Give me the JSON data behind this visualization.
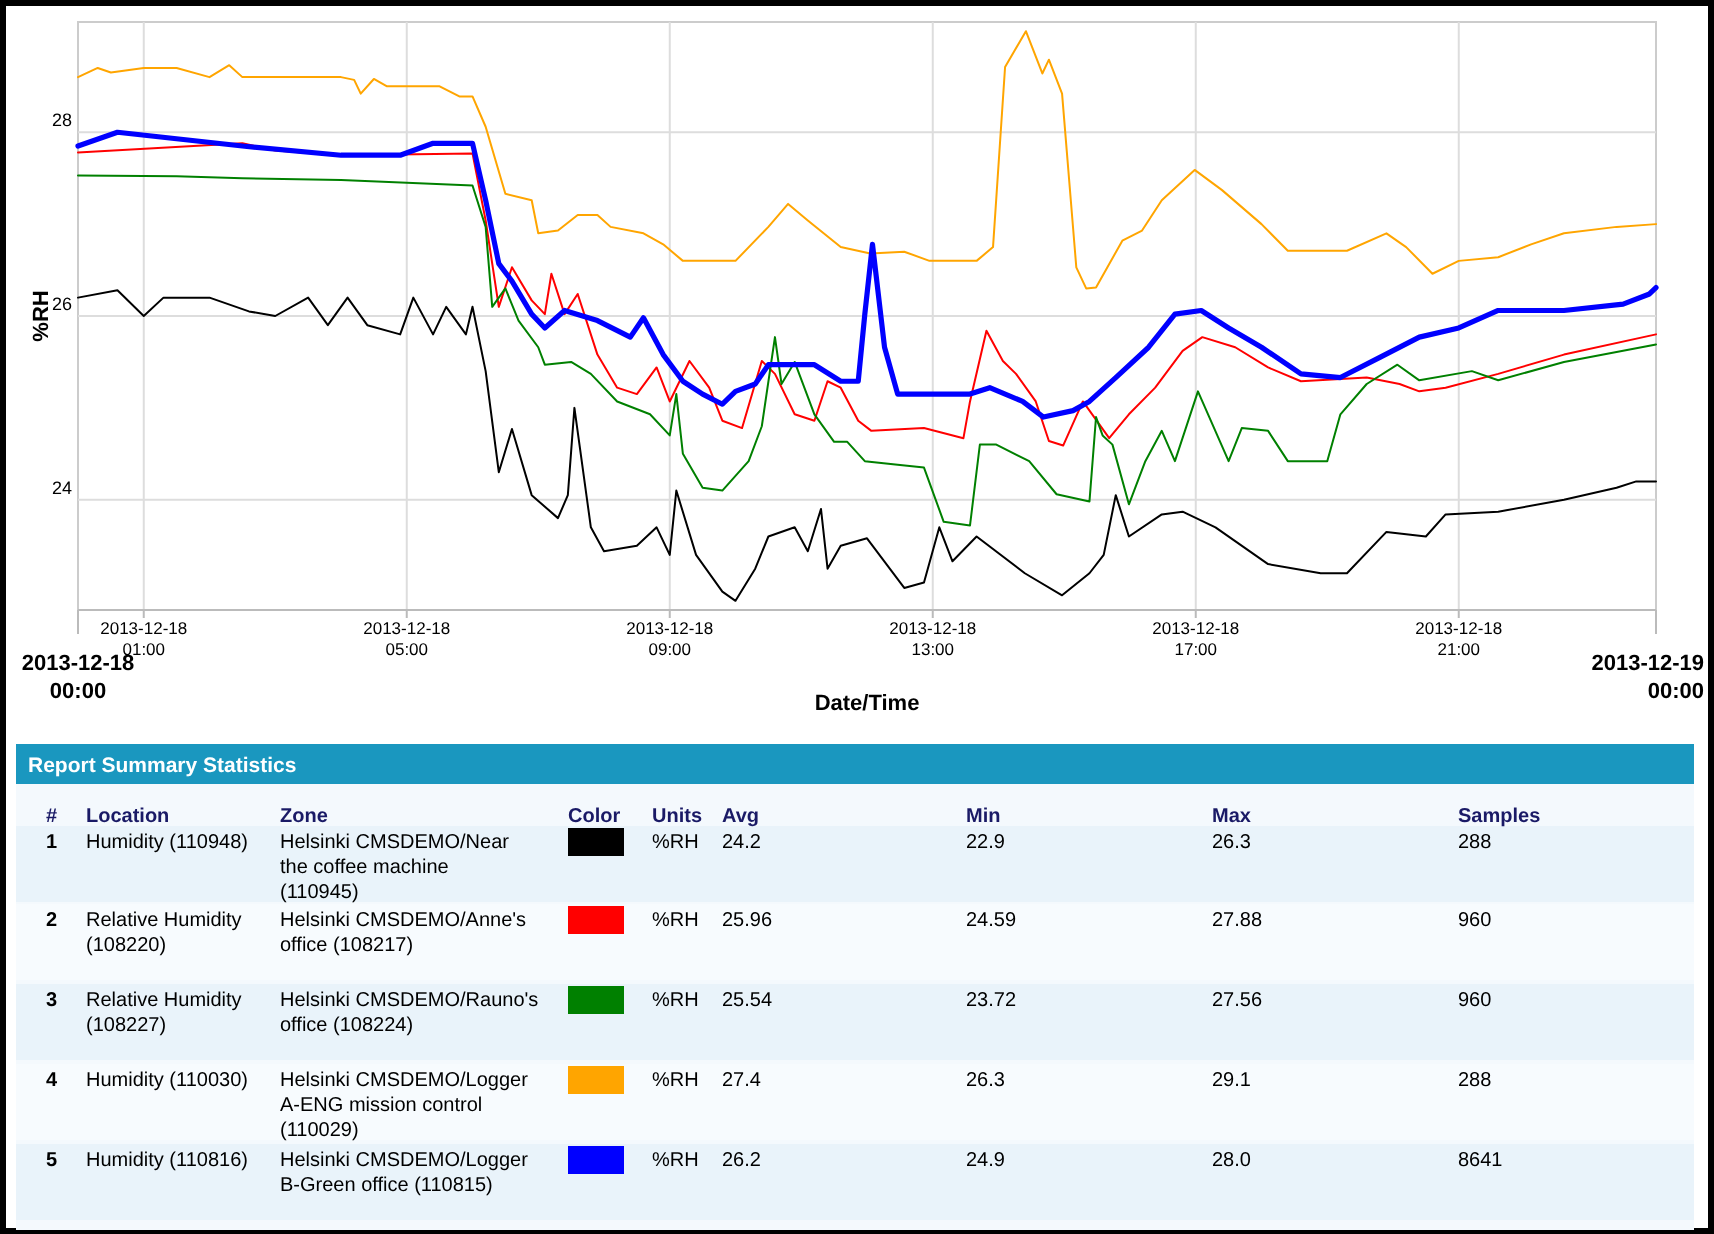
{
  "chart_data": {
    "type": "line",
    "xlabel": "Date/Time",
    "ylabel": "%RH",
    "xlim": [
      "2013-12-18T00:00",
      "2013-12-19T00:00"
    ],
    "ylim": [
      22.8,
      29.2
    ],
    "yticks": [
      24,
      26,
      28
    ],
    "xticks": [
      {
        "value": "2013-12-18T01:00",
        "label": "2013-12-18\n01:00"
      },
      {
        "value": "2013-12-18T05:00",
        "label": "2013-12-18\n05:00"
      },
      {
        "value": "2013-12-18T09:00",
        "label": "2013-12-18\n09:00"
      },
      {
        "value": "2013-12-18T13:00",
        "label": "2013-12-18\n13:00"
      },
      {
        "value": "2013-12-18T17:00",
        "label": "2013-12-18\n17:00"
      },
      {
        "value": "2013-12-18T21:00",
        "label": "2013-12-18\n21:00"
      }
    ],
    "grid": true,
    "series": [
      {
        "color": "#000000",
        "x": [
          "2013-12-18T00:00",
          "2013-12-18T00:36",
          "2013-12-18T01:00",
          "2013-12-18T01:18",
          "2013-12-18T02:00",
          "2013-12-18T02:36",
          "2013-12-18T03:00",
          "2013-12-18T03:30",
          "2013-12-18T03:48",
          "2013-12-18T04:06",
          "2013-12-18T04:24",
          "2013-12-18T04:54",
          "2013-12-18T05:06",
          "2013-12-18T05:24",
          "2013-12-18T05:36",
          "2013-12-18T05:54",
          "2013-12-18T06:00",
          "2013-12-18T06:12",
          "2013-12-18T06:24",
          "2013-12-18T06:36",
          "2013-12-18T06:54",
          "2013-12-18T07:18",
          "2013-12-18T07:27",
          "2013-12-18T07:33",
          "2013-12-18T07:48",
          "2013-12-18T08:00",
          "2013-12-18T08:30",
          "2013-12-18T08:48",
          "2013-12-18T09:00",
          "2013-12-18T09:06",
          "2013-12-18T09:24",
          "2013-12-18T09:48",
          "2013-12-18T10:00",
          "2013-12-18T10:18",
          "2013-12-18T10:30",
          "2013-12-18T10:54",
          "2013-12-18T11:06",
          "2013-12-18T11:18",
          "2013-12-18T11:24",
          "2013-12-18T11:36",
          "2013-12-18T12:00",
          "2013-12-18T12:34",
          "2013-12-18T12:52",
          "2013-12-18T13:06",
          "2013-12-18T13:18",
          "2013-12-18T13:40",
          "2013-12-18T14:24",
          "2013-12-18T14:58",
          "2013-12-18T15:23",
          "2013-12-18T15:36",
          "2013-12-18T15:47",
          "2013-12-18T15:59",
          "2013-12-18T16:29",
          "2013-12-18T16:48",
          "2013-12-18T17:18",
          "2013-12-18T18:06",
          "2013-12-18T18:54",
          "2013-12-18T19:18",
          "2013-12-18T19:54",
          "2013-12-18T20:30",
          "2013-12-18T20:48",
          "2013-12-18T21:36",
          "2013-12-18T22:36",
          "2013-12-18T23:24",
          "2013-12-18T23:42",
          "2013-12-19T00:00"
        ],
        "values": [
          26.2,
          26.28,
          26,
          26.2,
          26.2,
          26.05,
          26,
          26.2,
          25.9,
          26.2,
          25.9,
          25.8,
          26.2,
          25.8,
          26.1,
          25.8,
          26.1,
          25.4,
          24.3,
          24.77,
          24.05,
          23.8,
          24.05,
          25,
          23.7,
          23.44,
          23.5,
          23.7,
          23.4,
          24.1,
          23.4,
          23,
          22.9,
          23.25,
          23.6,
          23.7,
          23.44,
          23.9,
          23.25,
          23.5,
          23.58,
          23.04,
          23.1,
          23.7,
          23.33,
          23.6,
          23.2,
          22.96,
          23.2,
          23.4,
          24.05,
          23.6,
          23.84,
          23.87,
          23.7,
          23.3,
          23.2,
          23.2,
          23.65,
          23.6,
          23.84,
          23.87,
          24,
          24.13,
          24.2,
          24.2
        ]
      },
      {
        "color": "#ff0000",
        "x": [
          "2013-12-18T00:00",
          "2013-12-18T02:30",
          "2013-12-18T03:00",
          "2013-12-18T04:00",
          "2013-12-18T06:00",
          "2013-12-18T06:12",
          "2013-12-18T06:24",
          "2013-12-18T06:36",
          "2013-12-18T06:54",
          "2013-12-18T07:06",
          "2013-12-18T07:12",
          "2013-12-18T07:24",
          "2013-12-18T07:36",
          "2013-12-18T07:54",
          "2013-12-18T08:12",
          "2013-12-18T08:30",
          "2013-12-18T08:48",
          "2013-12-18T09:00",
          "2013-12-18T09:18",
          "2013-12-18T09:36",
          "2013-12-18T09:48",
          "2013-12-18T10:06",
          "2013-12-18T10:24",
          "2013-12-18T10:36",
          "2013-12-18T10:54",
          "2013-12-18T11:12",
          "2013-12-18T11:24",
          "2013-12-18T11:36",
          "2013-12-18T11:52",
          "2013-12-18T12:04",
          "2013-12-18T12:52",
          "2013-12-18T13:28",
          "2013-12-18T13:34",
          "2013-12-18T13:49",
          "2013-12-18T14:04",
          "2013-12-18T14:16",
          "2013-12-18T14:34",
          "2013-12-18T14:46",
          "2013-12-18T14:59",
          "2013-12-18T15:17",
          "2013-12-18T15:41",
          "2013-12-18T15:59",
          "2013-12-18T16:23",
          "2013-12-18T16:48",
          "2013-12-18T17:06",
          "2013-12-18T17:36",
          "2013-12-18T18:06",
          "2013-12-18T18:36",
          "2013-12-18T19:36",
          "2013-12-18T20:06",
          "2013-12-18T20:24",
          "2013-12-18T20:48",
          "2013-12-18T21:36",
          "2013-12-18T22:36",
          "2013-12-19T00:00"
        ],
        "values": [
          27.78,
          27.88,
          27.8,
          27.75,
          27.77,
          27.04,
          26.1,
          26.53,
          26.17,
          26.02,
          26.46,
          26.02,
          26.24,
          25.58,
          25.22,
          25.15,
          25.44,
          25.07,
          25.51,
          25.22,
          24.86,
          24.78,
          25.51,
          25.37,
          24.93,
          24.86,
          25.29,
          25.22,
          24.86,
          24.75,
          24.78,
          24.67,
          25.07,
          25.84,
          25.51,
          25.37,
          25.07,
          24.64,
          24.59,
          25.07,
          24.67,
          24.93,
          25.22,
          25.62,
          25.77,
          25.66,
          25.44,
          25.29,
          25.33,
          25.26,
          25.18,
          25.22,
          25.37,
          25.58,
          25.8
        ]
      },
      {
        "color": "#008000",
        "x": [
          "2013-12-18T00:00",
          "2013-12-18T01:30",
          "2013-12-18T02:30",
          "2013-12-18T04:00",
          "2013-12-18T06:00",
          "2013-12-18T06:12",
          "2013-12-18T06:18",
          "2013-12-18T06:30",
          "2013-12-18T06:42",
          "2013-12-18T07:00",
          "2013-12-18T07:06",
          "2013-12-18T07:30",
          "2013-12-18T07:48",
          "2013-12-18T08:12",
          "2013-12-18T08:42",
          "2013-12-18T09:00",
          "2013-12-18T09:06",
          "2013-12-18T09:12",
          "2013-12-18T09:30",
          "2013-12-18T09:48",
          "2013-12-18T10:12",
          "2013-12-18T10:24",
          "2013-12-18T10:36",
          "2013-12-18T10:42",
          "2013-12-18T10:54",
          "2013-12-18T11:12",
          "2013-12-18T11:30",
          "2013-12-18T11:42",
          "2013-12-18T11:58",
          "2013-12-18T12:28",
          "2013-12-18T12:52",
          "2013-12-18T13:10",
          "2013-12-18T13:34",
          "2013-12-18T13:43",
          "2013-12-18T13:58",
          "2013-12-18T14:28",
          "2013-12-18T14:53",
          "2013-12-18T15:23",
          "2013-12-18T15:29",
          "2013-12-18T15:35",
          "2013-12-18T15:44",
          "2013-12-18T15:59",
          "2013-12-18T16:14",
          "2013-12-18T16:29",
          "2013-12-18T16:41",
          "2013-12-18T17:02",
          "2013-12-18T17:30",
          "2013-12-18T17:42",
          "2013-12-18T18:06",
          "2013-12-18T18:24",
          "2013-12-18T19:00",
          "2013-12-18T19:12",
          "2013-12-18T19:36",
          "2013-12-18T20:04",
          "2013-12-18T20:24",
          "2013-12-18T21:12",
          "2013-12-18T21:36",
          "2013-12-18T22:36",
          "2013-12-19T00:00"
        ],
        "values": [
          27.53,
          27.52,
          27.5,
          27.48,
          27.42,
          26.97,
          26.1,
          26.3,
          25.95,
          25.66,
          25.47,
          25.5,
          25.37,
          25.07,
          24.93,
          24.7,
          25.15,
          24.5,
          24.13,
          24.1,
          24.42,
          24.8,
          25.77,
          25.26,
          25.5,
          24.93,
          24.63,
          24.63,
          24.42,
          24.38,
          24.35,
          23.76,
          23.72,
          24.6,
          24.6,
          24.42,
          24.06,
          23.98,
          24.9,
          24.7,
          24.6,
          23.95,
          24.42,
          24.75,
          24.42,
          25.18,
          24.42,
          24.78,
          24.75,
          24.42,
          24.42,
          24.93,
          25.26,
          25.47,
          25.3,
          25.4,
          25.3,
          25.5,
          25.69
        ]
      },
      {
        "color": "#ffa500",
        "x": [
          "2013-12-18T00:00",
          "2013-12-18T00:18",
          "2013-12-18T00:30",
          "2013-12-18T01:00",
          "2013-12-18T01:30",
          "2013-12-18T02:00",
          "2013-12-18T02:18",
          "2013-12-18T02:30",
          "2013-12-18T04:00",
          "2013-12-18T04:12",
          "2013-12-18T04:18",
          "2013-12-18T04:30",
          "2013-12-18T04:42",
          "2013-12-18T05:30",
          "2013-12-18T05:48",
          "2013-12-18T06:00",
          "2013-12-18T06:12",
          "2013-12-18T06:30",
          "2013-12-18T06:54",
          "2013-12-18T07:00",
          "2013-12-18T07:18",
          "2013-12-18T07:36",
          "2013-12-18T07:54",
          "2013-12-18T08:06",
          "2013-12-18T08:36",
          "2013-12-18T08:54",
          "2013-12-18T09:12",
          "2013-12-18T10:00",
          "2013-12-18T10:30",
          "2013-12-18T10:48",
          "2013-12-18T11:06",
          "2013-12-18T11:36",
          "2013-12-18T12:03",
          "2013-12-18T12:34",
          "2013-12-18T12:57",
          "2013-12-18T13:40",
          "2013-12-18T13:55",
          "2013-12-18T14:06",
          "2013-12-18T14:25",
          "2013-12-18T14:40",
          "2013-12-18T14:46",
          "2013-12-18T14:58",
          "2013-12-18T15:11",
          "2013-12-18T15:20",
          "2013-12-18T15:29",
          "2013-12-18T15:53",
          "2013-12-18T16:11",
          "2013-12-18T16:29",
          "2013-12-18T16:59",
          "2013-12-18T17:24",
          "2013-12-18T18:00",
          "2013-12-18T18:24",
          "2013-12-18T19:18",
          "2013-12-18T19:54",
          "2013-12-18T20:12",
          "2013-12-18T20:36",
          "2013-12-18T21:00",
          "2013-12-18T21:36",
          "2013-12-18T22:06",
          "2013-12-18T22:36",
          "2013-12-18T23:24",
          "2013-12-19T00:00"
        ],
        "values": [
          28.6,
          28.7,
          28.65,
          28.7,
          28.7,
          28.6,
          28.73,
          28.6,
          28.6,
          28.57,
          28.42,
          28.58,
          28.5,
          28.5,
          28.39,
          28.39,
          28.06,
          27.33,
          27.26,
          26.9,
          26.93,
          27.1,
          27.1,
          26.97,
          26.9,
          26.78,
          26.6,
          26.6,
          26.97,
          27.22,
          27.04,
          26.75,
          26.68,
          26.7,
          26.6,
          26.6,
          26.75,
          28.71,
          29.1,
          28.64,
          28.79,
          28.42,
          26.53,
          26.3,
          26.31,
          26.82,
          26.93,
          27.26,
          27.59,
          27.37,
          27,
          26.71,
          26.71,
          26.9,
          26.75,
          26.46,
          26.6,
          26.64,
          26.78,
          26.9,
          26.97,
          27
        ]
      },
      {
        "color": "#0000ff",
        "x": [
          "2013-12-18T00:00",
          "2013-12-18T00:36",
          "2013-12-18T02:30",
          "2013-12-18T04:00",
          "2013-12-18T04:54",
          "2013-12-18T05:24",
          "2013-12-18T06:00",
          "2013-12-18T06:12",
          "2013-12-18T06:24",
          "2013-12-18T06:36",
          "2013-12-18T06:54",
          "2013-12-18T07:06",
          "2013-12-18T07:24",
          "2013-12-18T07:54",
          "2013-12-18T08:24",
          "2013-12-18T08:36",
          "2013-12-18T08:54",
          "2013-12-18T09:12",
          "2013-12-18T09:30",
          "2013-12-18T09:48",
          "2013-12-18T10:00",
          "2013-12-18T10:18",
          "2013-12-18T10:30",
          "2013-12-18T11:12",
          "2013-12-18T11:36",
          "2013-12-18T11:52",
          "2013-12-18T11:58",
          "2013-12-18T12:05",
          "2013-12-18T12:16",
          "2013-12-18T12:28",
          "2013-12-18T13:34",
          "2013-12-18T13:52",
          "2013-12-18T14:22",
          "2013-12-18T14:41",
          "2013-12-18T15:08",
          "2013-12-18T15:23",
          "2013-12-18T15:47",
          "2013-12-18T16:17",
          "2013-12-18T16:41",
          "2013-12-18T17:05",
          "2013-12-18T17:30",
          "2013-12-18T18:00",
          "2013-12-18T18:36",
          "2013-12-18T19:12",
          "2013-12-18T19:48",
          "2013-12-18T20:24",
          "2013-12-18T21:00",
          "2013-12-18T21:36",
          "2013-12-18T22:36",
          "2013-12-18T23:30",
          "2013-12-18T23:54",
          "2013-12-19T00:00"
        ],
        "values": [
          27.85,
          28,
          27.85,
          27.75,
          27.75,
          27.88,
          27.88,
          27.26,
          26.57,
          26.38,
          26.02,
          25.87,
          26.06,
          25.95,
          25.77,
          25.98,
          25.58,
          25.29,
          25.15,
          25.04,
          25.18,
          25.26,
          25.47,
          25.47,
          25.29,
          25.29,
          26.02,
          26.78,
          25.66,
          25.15,
          25.15,
          25.22,
          25.07,
          24.9,
          24.97,
          25.07,
          25.33,
          25.66,
          26.02,
          26.06,
          25.87,
          25.66,
          25.37,
          25.33,
          25.55,
          25.77,
          25.87,
          26.06,
          26.06,
          26.13,
          26.24,
          26.31
        ]
      }
    ],
    "annotations": [
      "2013-12-18\n00:00",
      "2013-12-19\n00:00",
      "Report Summary Statistics",
      "#",
      "Location",
      "Zone",
      "Color",
      "Units",
      "Avg",
      "Min",
      "Max",
      "Samples",
      "1",
      "Humidity (110948)",
      "Helsinki CMSDEMO/Near the coffee machine (110945)",
      "%RH",
      "24.2",
      "22.9",
      "26.3",
      "288",
      "2",
      "Relative Humidity (108220)",
      "Helsinki CMSDEMO/Anne's office (108217)",
      "%RH",
      "25.96",
      "24.59",
      "27.88",
      "960",
      "3",
      "Relative Humidity (108227)",
      "Helsinki CMSDEMO/Rauno's office (108224)",
      "%RH",
      "25.54",
      "23.72",
      "27.56",
      "960",
      "4",
      "Humidity (110030)",
      "Helsinki CMSDEMO/Logger A-ENG mission control (110029)",
      "%RH",
      "27.4",
      "26.3",
      "29.1",
      "288",
      "5",
      "Humidity (110816)",
      "Helsinki CMSDEMO/Logger B-Green office (110815)",
      "%RH",
      "26.2",
      "24.9",
      "28.0",
      "8641"
    ]
  }
}
